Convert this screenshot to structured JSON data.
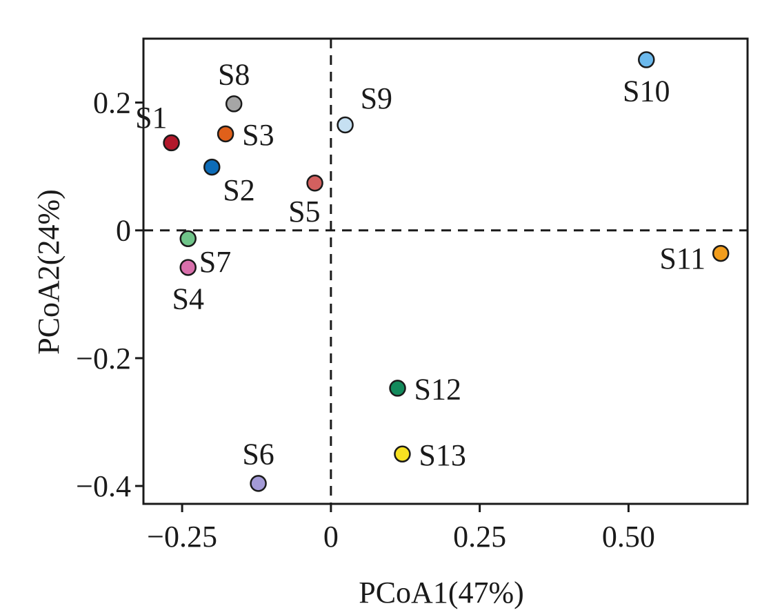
{
  "chart_data": {
    "type": "scatter",
    "title": "",
    "xlabel": "PCoA1(47%)",
    "ylabel": "PCoA2(24%)",
    "xlim": [
      -0.315,
      0.7
    ],
    "ylim": [
      -0.428,
      0.3
    ],
    "xticks": [
      -0.25,
      0,
      0.25,
      0.5
    ],
    "xtick_labels": [
      "−0.25",
      "0",
      "0.25",
      "0.50"
    ],
    "yticks": [
      -0.4,
      -0.2,
      0,
      0.2
    ],
    "ytick_labels": [
      "−0.4",
      "−0.2",
      "0",
      "0.2"
    ],
    "reference_lines": {
      "x": 0,
      "y": 0,
      "style": "dashed"
    },
    "grid": false,
    "legend": "none",
    "points": [
      {
        "label": "S1",
        "x": -0.268,
        "y": 0.137,
        "color": "#b2182b",
        "label_pos": "top-left"
      },
      {
        "label": "S2",
        "x": -0.2,
        "y": 0.099,
        "color": "#0d6cb8",
        "label_pos": "bottom-right"
      },
      {
        "label": "S3",
        "x": -0.177,
        "y": 0.151,
        "color": "#e0601a",
        "label_pos": "right"
      },
      {
        "label": "S4",
        "x": -0.24,
        "y": -0.058,
        "color": "#d86fab",
        "label_pos": "bottom"
      },
      {
        "label": "S5",
        "x": -0.027,
        "y": 0.074,
        "color": "#d3605f",
        "label_pos": "bottom-left"
      },
      {
        "label": "S6",
        "x": -0.122,
        "y": -0.396,
        "color": "#a39ad6",
        "label_pos": "top"
      },
      {
        "label": "S7",
        "x": -0.24,
        "y": -0.013,
        "color": "#6fc489",
        "label_pos": "bottom-right"
      },
      {
        "label": "S8",
        "x": -0.163,
        "y": 0.198,
        "color": "#a6a6a6",
        "label_pos": "top"
      },
      {
        "label": "S9",
        "x": 0.024,
        "y": 0.165,
        "color": "#c6e0f2",
        "label_pos": "top-right"
      },
      {
        "label": "S10",
        "x": 0.53,
        "y": 0.267,
        "color": "#6cb9ec",
        "label_pos": "bottom"
      },
      {
        "label": "S11",
        "x": 0.655,
        "y": -0.036,
        "color": "#f29d1c",
        "label_pos": "left"
      },
      {
        "label": "S12",
        "x": 0.112,
        "y": -0.247,
        "color": "#138a5c",
        "label_pos": "right"
      },
      {
        "label": "S13",
        "x": 0.12,
        "y": -0.35,
        "color": "#f7e121",
        "label_pos": "right"
      }
    ]
  }
}
